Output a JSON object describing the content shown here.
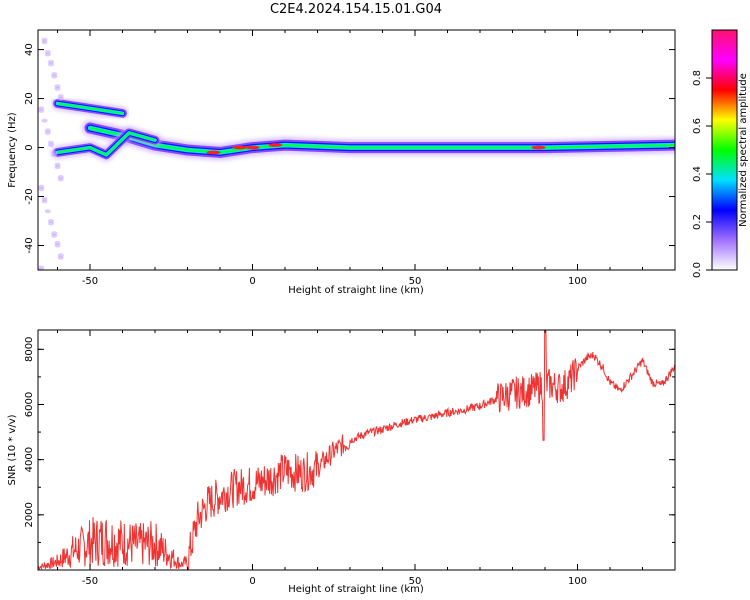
{
  "title": "C2E4.2024.154.15.01.G04",
  "chart_data": [
    {
      "type": "heatmap",
      "title": "",
      "xlabel": "Height of straight line (km)",
      "ylabel": "Frequency (Hz)",
      "xlim": [
        -66,
        130
      ],
      "ylim": [
        -50,
        48
      ],
      "x_ticks": [
        "-50",
        "0",
        "50",
        "100"
      ],
      "y_ticks": [
        "-40",
        "-20",
        "0",
        "20",
        "40"
      ],
      "colorbar": {
        "label": "Normalized spectral amplitude",
        "range": [
          0,
          1
        ],
        "ticks": [
          "0.0",
          "0.2",
          "0.4",
          "0.6",
          "0.8"
        ],
        "colors": [
          "#ffffff",
          "#a070ff",
          "#0000ff",
          "#00e0ff",
          "#00ff00",
          "#ffff00",
          "#ff0000",
          "#ff00ff",
          "#ff1070"
        ]
      },
      "ridges": [
        {
          "points": [
            [
              -50,
              8
            ],
            [
              -40,
              5
            ],
            [
              -30,
              1
            ],
            [
              -20,
              -1
            ],
            [
              -10,
              -2
            ],
            [
              0,
              0
            ],
            [
              10,
              1
            ],
            [
              30,
              0
            ],
            [
              60,
              0
            ],
            [
              90,
              0
            ],
            [
              130,
              1
            ]
          ]
        },
        {
          "points": [
            [
              -60,
              -2
            ],
            [
              -50,
              0
            ],
            [
              -45,
              -3
            ],
            [
              -38,
              6
            ],
            [
              -30,
              3
            ]
          ]
        },
        {
          "points": [
            [
              -60,
              18
            ],
            [
              -50,
              16
            ],
            [
              -40,
              14
            ]
          ]
        }
      ],
      "grid": false
    },
    {
      "type": "line",
      "title": "",
      "xlabel": "Height of straight line (km)",
      "ylabel": "SNR (10 * v/v)",
      "xlim": [
        -66,
        130
      ],
      "ylim": [
        0,
        8700
      ],
      "x_ticks": [
        "-50",
        "0",
        "50",
        "100"
      ],
      "y_ticks": [
        "2000",
        "4000",
        "6000",
        "8000"
      ],
      "series": [
        {
          "color": "#ee3333",
          "x": [
            -66,
            -60,
            -55,
            -50,
            -45,
            -40,
            -35,
            -30,
            -25,
            -22,
            -20,
            -17,
            -14,
            -10,
            -5,
            0,
            5,
            10,
            15,
            20,
            25,
            30,
            35,
            40,
            45,
            50,
            55,
            60,
            65,
            70,
            75,
            80,
            85,
            88,
            90,
            92,
            95,
            98,
            100,
            103,
            105,
            108,
            110,
            113,
            117,
            120,
            123,
            126,
            130
          ],
          "y": [
            100,
            300,
            700,
            1000,
            1100,
            1000,
            900,
            950,
            500,
            200,
            300,
            1800,
            2400,
            2700,
            3000,
            3100,
            3300,
            3600,
            3500,
            3700,
            4300,
            4700,
            4950,
            5100,
            5300,
            5450,
            5550,
            5700,
            5800,
            5950,
            6200,
            6400,
            6500,
            6600,
            6800,
            6700,
            6600,
            6900,
            7300,
            7700,
            7800,
            7300,
            6800,
            6500,
            7100,
            7600,
            6800,
            6700,
            7400
          ]
        }
      ],
      "grid": false
    }
  ]
}
